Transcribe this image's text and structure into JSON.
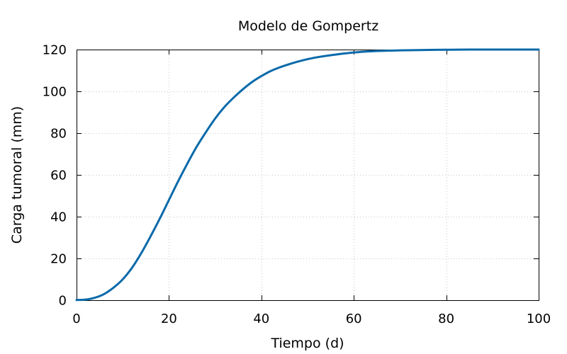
{
  "chart_data": {
    "type": "line",
    "title": "Modelo de Gompertz",
    "xlabel": "Tiempo (d)",
    "ylabel": "Carga tumoral (mm)",
    "xlim": [
      0,
      100
    ],
    "ylim": [
      0,
      120
    ],
    "xticks": [
      0,
      20,
      40,
      60,
      80,
      100
    ],
    "yticks": [
      0,
      20,
      40,
      60,
      80,
      100,
      120
    ],
    "grid": true,
    "series": [
      {
        "color": "#0a6aaa",
        "x": [
          0,
          2,
          4,
          6,
          8,
          10,
          12,
          14,
          16,
          18,
          20,
          22,
          24,
          26,
          28,
          30,
          32,
          34,
          36,
          38,
          40,
          42,
          44,
          46,
          48,
          50,
          52,
          55,
          60,
          65,
          70,
          75,
          80,
          85,
          90,
          95,
          100
        ],
        "y": [
          0.1,
          0.3,
          1.2,
          3.0,
          6.0,
          10.0,
          15.5,
          22.5,
          30.5,
          39.0,
          48.0,
          57.0,
          65.5,
          73.5,
          80.5,
          87.0,
          92.5,
          97.0,
          101.0,
          104.5,
          107.3,
          109.7,
          111.5,
          113.0,
          114.3,
          115.4,
          116.3,
          117.3,
          118.6,
          119.3,
          119.6,
          119.8,
          119.9,
          120.0,
          120.0,
          120.0,
          120.0
        ]
      }
    ]
  }
}
